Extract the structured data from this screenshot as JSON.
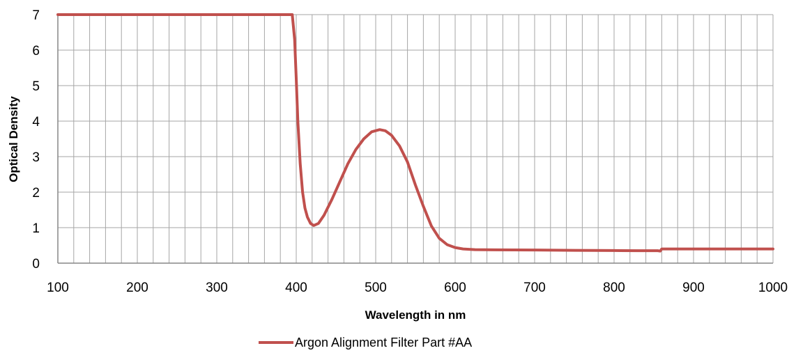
{
  "chart_data": {
    "type": "line",
    "title": "",
    "xlabel": "Wavelength in nm",
    "ylabel": "Optical Density",
    "xlim": [
      100,
      1000
    ],
    "ylim": [
      0,
      7
    ],
    "x_ticks": [
      100,
      200,
      300,
      400,
      500,
      600,
      700,
      800,
      900,
      1000
    ],
    "y_ticks": [
      0,
      1,
      2,
      3,
      4,
      5,
      6,
      7
    ],
    "x_minor_step": 20,
    "grid": true,
    "legend_position": "bottom",
    "series": [
      {
        "name": "Argon Alignment Filter Part #AA",
        "color": "#c0504d",
        "points": [
          [
            100,
            7.0
          ],
          [
            395,
            7.0
          ],
          [
            398,
            6.3
          ],
          [
            400,
            5.2
          ],
          [
            402,
            4.0
          ],
          [
            405,
            2.8
          ],
          [
            408,
            2.0
          ],
          [
            411,
            1.55
          ],
          [
            414,
            1.3
          ],
          [
            418,
            1.12
          ],
          [
            422,
            1.06
          ],
          [
            428,
            1.12
          ],
          [
            435,
            1.35
          ],
          [
            445,
            1.8
          ],
          [
            455,
            2.3
          ],
          [
            465,
            2.8
          ],
          [
            475,
            3.2
          ],
          [
            485,
            3.5
          ],
          [
            495,
            3.7
          ],
          [
            505,
            3.76
          ],
          [
            512,
            3.73
          ],
          [
            520,
            3.6
          ],
          [
            530,
            3.3
          ],
          [
            540,
            2.85
          ],
          [
            550,
            2.2
          ],
          [
            560,
            1.6
          ],
          [
            570,
            1.05
          ],
          [
            580,
            0.7
          ],
          [
            590,
            0.52
          ],
          [
            600,
            0.44
          ],
          [
            610,
            0.4
          ],
          [
            625,
            0.38
          ],
          [
            650,
            0.375
          ],
          [
            700,
            0.37
          ],
          [
            750,
            0.36
          ],
          [
            800,
            0.355
          ],
          [
            830,
            0.35
          ],
          [
            855,
            0.35
          ],
          [
            858,
            0.34
          ],
          [
            860,
            0.4
          ],
          [
            870,
            0.4
          ],
          [
            900,
            0.4
          ],
          [
            950,
            0.4
          ],
          [
            1000,
            0.4
          ]
        ]
      }
    ]
  },
  "colors": {
    "grid": "#a6a6a6",
    "axis": "#868686",
    "series": "#c0504d"
  }
}
